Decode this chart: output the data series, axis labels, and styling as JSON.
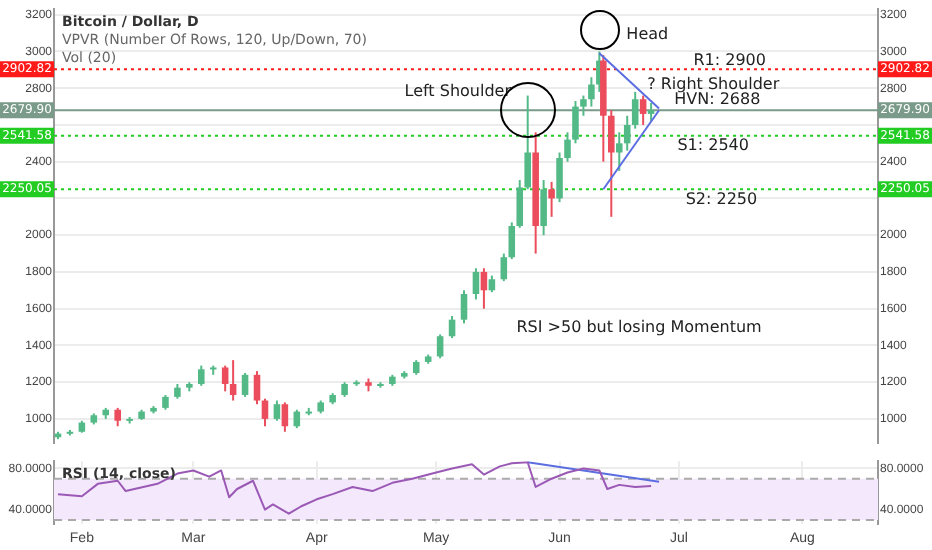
{
  "chart_data": [
    {
      "type": "candlestick",
      "title": "Bitcoin / Dollar, D",
      "subtitle": "VPVR (Number Of Rows, 120, Up/Down, 70)",
      "x": [
        "--01-26",
        "--01-29",
        "--02-01",
        "--02-04",
        "--02-07",
        "--02-10",
        "--02-13",
        "--02-16",
        "--02-19",
        "--02-22",
        "--02-25",
        "--02-28",
        "--03-03",
        "--03-06",
        "--03-09",
        "--03-11",
        "--03-14",
        "--03-17",
        "--03-19",
        "--03-22",
        "--03-24",
        "--03-27",
        "--03-30",
        "--04-02",
        "--04-05",
        "--04-08",
        "--04-11",
        "--04-14",
        "--04-17",
        "--04-20",
        "--04-23",
        "--04-26",
        "--04-29",
        "--05-02",
        "--05-05",
        "--05-08",
        "--05-11",
        "--05-13",
        "--05-15",
        "--05-18",
        "--05-20",
        "--05-22",
        "--05-24",
        "--05-26",
        "--05-28",
        "--05-30",
        "--06-01",
        "--06-03",
        "--06-05",
        "--06-07",
        "--06-09",
        "--06-11",
        "--06-12",
        "--06-14",
        "--06-16",
        "--06-18",
        "--06-20",
        "--06-22",
        "--06-24"
      ],
      "ohlc": [
        [
          900,
          930,
          890,
          920
        ],
        [
          920,
          940,
          910,
          930
        ],
        [
          930,
          990,
          925,
          980
        ],
        [
          980,
          1030,
          970,
          1020
        ],
        [
          1020,
          1060,
          1000,
          1050
        ],
        [
          1050,
          1060,
          960,
          990
        ],
        [
          990,
          1010,
          975,
          1000
        ],
        [
          1000,
          1050,
          995,
          1040
        ],
        [
          1040,
          1070,
          1030,
          1060
        ],
        [
          1060,
          1130,
          1050,
          1120
        ],
        [
          1120,
          1190,
          1110,
          1170
        ],
        [
          1170,
          1200,
          1150,
          1190
        ],
        [
          1190,
          1290,
          1180,
          1270
        ],
        [
          1270,
          1290,
          1240,
          1280
        ],
        [
          1280,
          1290,
          1150,
          1190
        ],
        [
          1190,
          1320,
          1100,
          1130
        ],
        [
          1130,
          1250,
          1120,
          1240
        ],
        [
          1240,
          1260,
          1080,
          1100
        ],
        [
          1100,
          1110,
          960,
          1000
        ],
        [
          1000,
          1100,
          990,
          1080
        ],
        [
          1080,
          1090,
          930,
          960
        ],
        [
          960,
          1050,
          950,
          1040
        ],
        [
          1040,
          1060,
          1020,
          1040
        ],
        [
          1040,
          1100,
          1030,
          1090
        ],
        [
          1090,
          1140,
          1080,
          1130
        ],
        [
          1130,
          1200,
          1120,
          1190
        ],
        [
          1190,
          1210,
          1180,
          1200
        ],
        [
          1200,
          1220,
          1150,
          1180
        ],
        [
          1180,
          1200,
          1170,
          1190
        ],
        [
          1190,
          1240,
          1180,
          1230
        ],
        [
          1230,
          1260,
          1220,
          1250
        ],
        [
          1250,
          1320,
          1240,
          1310
        ],
        [
          1310,
          1350,
          1300,
          1340
        ],
        [
          1340,
          1460,
          1330,
          1450
        ],
        [
          1450,
          1560,
          1440,
          1540
        ],
        [
          1540,
          1700,
          1520,
          1680
        ],
        [
          1680,
          1820,
          1650,
          1800
        ],
        [
          1800,
          1820,
          1600,
          1700
        ],
        [
          1700,
          1780,
          1690,
          1760
        ],
        [
          1760,
          1900,
          1750,
          1880
        ],
        [
          1880,
          2070,
          1870,
          2050
        ],
        [
          2050,
          2300,
          2040,
          2260
        ],
        [
          2260,
          2760,
          2250,
          2450
        ],
        [
          2450,
          2560,
          1900,
          2050
        ],
        [
          2050,
          2300,
          2000,
          2250
        ],
        [
          2250,
          2290,
          2100,
          2200
        ],
        [
          2200,
          2450,
          2180,
          2420
        ],
        [
          2420,
          2560,
          2400,
          2520
        ],
        [
          2520,
          2730,
          2500,
          2700
        ],
        [
          2700,
          2760,
          2650,
          2740
        ],
        [
          2740,
          2860,
          2700,
          2820
        ],
        [
          2820,
          3000,
          2780,
          2950
        ],
        [
          2950,
          2980,
          2400,
          2650
        ],
        [
          2650,
          2680,
          2100,
          2450
        ],
        [
          2450,
          2560,
          2350,
          2500
        ],
        [
          2500,
          2650,
          2460,
          2600
        ],
        [
          2600,
          2780,
          2580,
          2740
        ],
        [
          2740,
          2760,
          2600,
          2660
        ],
        [
          2660,
          2720,
          2620,
          2680
        ]
      ],
      "colors": [
        "#53b987",
        "#53b987",
        "#53b987",
        "#53b987",
        "#53b987",
        "#eb4d5c",
        "#53b987",
        "#53b987",
        "#53b987",
        "#53b987",
        "#53b987",
        "#53b987",
        "#53b987",
        "#53b987",
        "#eb4d5c",
        "#eb4d5c",
        "#53b987",
        "#eb4d5c",
        "#eb4d5c",
        "#53b987",
        "#eb4d5c",
        "#53b987",
        "#53b987",
        "#53b987",
        "#53b987",
        "#53b987",
        "#53b987",
        "#eb4d5c",
        "#53b987",
        "#53b987",
        "#53b987",
        "#53b987",
        "#53b987",
        "#53b987",
        "#53b987",
        "#53b987",
        "#53b987",
        "#eb4d5c",
        "#53b987",
        "#53b987",
        "#53b987",
        "#53b987",
        "#53b987",
        "#eb4d5c",
        "#53b987",
        "#eb4d5c",
        "#53b987",
        "#53b987",
        "#53b987",
        "#53b987",
        "#53b987",
        "#53b987",
        "#eb4d5c",
        "#eb4d5c",
        "#53b987",
        "#53b987",
        "#53b987",
        "#eb4d5c",
        "#53b987"
      ],
      "series": [
        {
          "type": "line",
          "x": [
            "--06-11",
            "--06-26"
          ],
          "values": [
            2990,
            2690
          ],
          "color": "#5b6ee1"
        },
        {
          "type": "line",
          "x": [
            "--06-12",
            "--06-26"
          ],
          "values": [
            2250,
            2680
          ],
          "color": "#5b6ee1"
        }
      ],
      "xlim": [
        "--01-25",
        "--08-20"
      ],
      "ylim": [
        870,
        3230
      ],
      "yticks": [
        1000,
        1200,
        1400,
        1600,
        1800,
        2000,
        {
          "value": 2200,
          "label": null
        },
        2400,
        {
          "value": 2600,
          "label": null
        },
        2800,
        3000,
        3200
      ],
      "y2lim": [
        870,
        3230
      ],
      "y2ticks": [
        1000,
        1200,
        1400,
        1600,
        1800,
        2000,
        {
          "value": 2200,
          "label": null
        },
        2400,
        {
          "value": 2600,
          "label": null
        },
        2800,
        3000,
        3200
      ],
      "tick_labels": "y",
      "grid": true,
      "legend": false,
      "ref_lines": [
        {
          "axis": "y",
          "value": 2902.82,
          "label": "2902.82",
          "color": "#ff1a1a",
          "line_style": "dotted"
        },
        {
          "axis": "y",
          "value": 2679.9,
          "label": "2679.90",
          "color": "#7a9a8a",
          "line_style": "solid"
        },
        {
          "axis": "y",
          "value": 2541.58,
          "label": "2541.58",
          "color": "#22cc22",
          "line_style": "dotted"
        },
        {
          "axis": "y",
          "value": 2250.05,
          "label": "2250.05",
          "color": "#22cc22",
          "line_style": "dotted"
        }
      ],
      "annotations": [
        "Vol (20)",
        "Head",
        "Left Shoulder",
        "? Right Shoulder",
        "R1: 2900",
        "HVN: 2688",
        "S1: 2540",
        "S2: 2250",
        "RSI >50 but losing Momentum"
      ]
    },
    {
      "type": "line",
      "title": "RSI (14, close)",
      "x": [
        "--01-26",
        "--02-01",
        "--02-05",
        "--02-10",
        "--02-12",
        "--02-20",
        "--02-25",
        "--03-01",
        "--03-05",
        "--03-08",
        "--03-10",
        "--03-12",
        "--03-16",
        "--03-19",
        "--03-21",
        "--03-25",
        "--03-28",
        "--04-01",
        "--04-05",
        "--04-10",
        "--04-15",
        "--04-20",
        "--04-25",
        "--05-01",
        "--05-05",
        "--05-10",
        "--05-13",
        "--05-17",
        "--05-20",
        "--05-24",
        "--05-26",
        "--05-30",
        "--06-03",
        "--06-07",
        "--06-11",
        "--06-13",
        "--06-16",
        "--06-20",
        "--06-24"
      ],
      "series": [
        {
          "values": [
            55,
            53,
            65,
            68,
            58,
            65,
            75,
            78,
            72,
            78,
            52,
            60,
            68,
            40,
            45,
            36,
            43,
            50,
            55,
            62,
            58,
            66,
            70,
            76,
            80,
            84,
            74,
            82,
            85,
            86,
            62,
            70,
            76,
            80,
            78,
            60,
            64,
            62,
            63
          ],
          "color": "#9b59b6"
        },
        {
          "type": "line",
          "x": [
            "--05-24",
            "--06-26"
          ],
          "values": [
            86,
            67
          ],
          "color": "#5b6ee1"
        }
      ],
      "xlim": [
        "--01-25",
        "--08-20"
      ],
      "xticks": [
        {
          "value": "--02-01",
          "label": "Feb"
        },
        {
          "value": "--03-01",
          "label": "Mar"
        },
        {
          "value": "--04-01",
          "label": "Apr"
        },
        {
          "value": "--05-01",
          "label": "May"
        },
        {
          "value": "--06-01",
          "label": "Jun"
        },
        {
          "value": "--07-01",
          "label": "Jul"
        },
        {
          "value": "--08-01",
          "label": "Aug"
        }
      ],
      "ylim": [
        26,
        87
      ],
      "yticks": [
        {
          "value": 40,
          "label": "40.0000"
        },
        {
          "value": 80,
          "label": "80.0000"
        }
      ],
      "y2lim": [
        26,
        87
      ],
      "y2ticks": [
        {
          "value": 40,
          "label": "40.0000"
        },
        {
          "value": 80,
          "label": "80.0000"
        }
      ],
      "grid": true,
      "legend": false,
      "ref_lines": [
        {
          "axis": "y",
          "value": 70,
          "color": "#aaaaaa",
          "line_style": "dashed"
        },
        {
          "axis": "y",
          "value": 30,
          "color": "#aaaaaa",
          "line_style": "dashed"
        }
      ],
      "bands": [
        {
          "axis": "y",
          "from": 30,
          "to": 70,
          "color": "#f4e8fc"
        }
      ]
    }
  ]
}
